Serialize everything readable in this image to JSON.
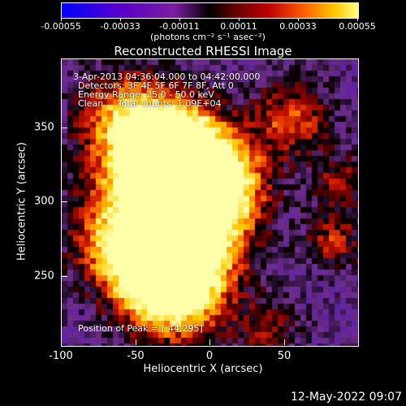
{
  "colorbar": {
    "ticks": [
      "-0.00055",
      "-0.00033",
      "-0.00011",
      "0.00011",
      "0.00033",
      "0.00055"
    ],
    "units": "(photons cm⁻² s⁻¹ asec⁻²)"
  },
  "title": "Reconstructed RHESSI Image",
  "info": {
    "time": "3-Apr-2013 04:36:04.000 to 04:42:00.000",
    "detectors": "Detectors: 3F 4F 5F 6F 7F 8F, Att 0",
    "energy": "Energy Range: 25.0 - 50.0 keV",
    "clean": "Clean     Total counts: 1.09E+04",
    "peak": "Position of Peak = [-44,295]"
  },
  "axes": {
    "xlabel": "Heliocentric X (arcsec)",
    "ylabel": "Heliocentric Y (arcsec)",
    "xticks": [
      "-100",
      "-50",
      "0",
      "50"
    ],
    "yticks": [
      "350",
      "300",
      "250"
    ],
    "xlim": [
      -100,
      90
    ],
    "ylim": [
      200,
      390
    ]
  },
  "footer": {
    "date": "12-May-2022 09:07"
  }
}
